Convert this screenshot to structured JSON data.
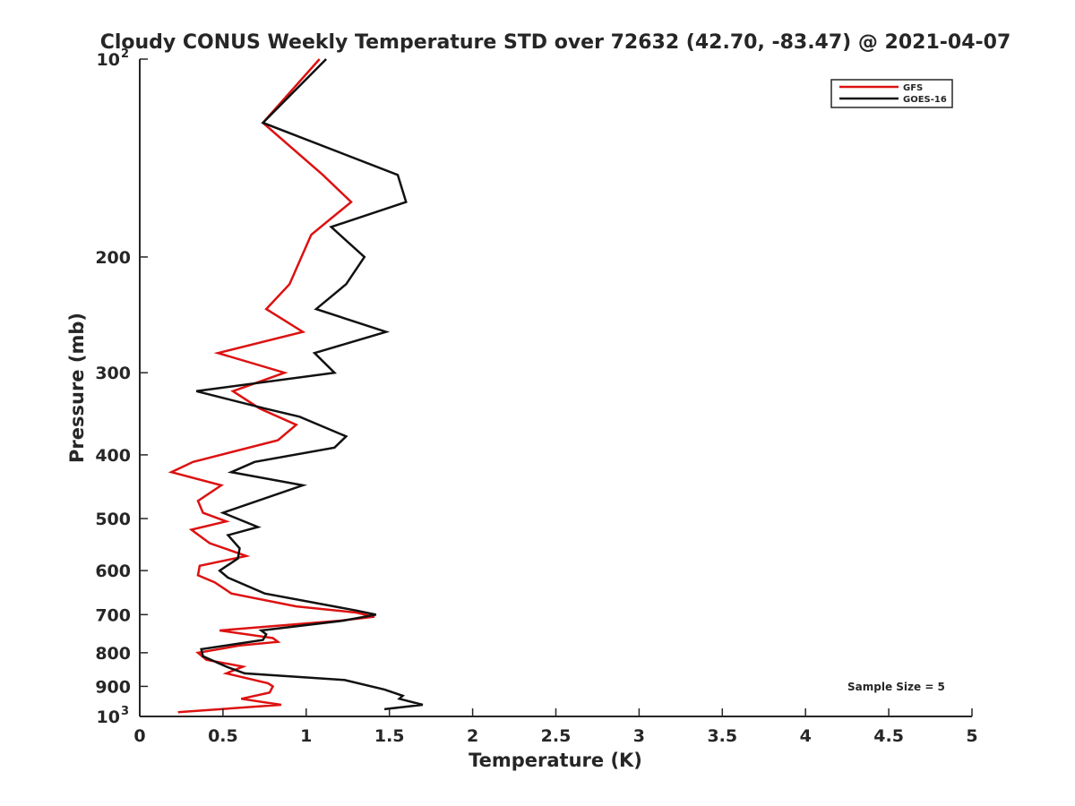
{
  "chart_data": {
    "type": "line",
    "title": "Cloudy CONUS Weekly Temperature STD over 72632 (42.70, -83.47) @ 2021-04-07",
    "xlabel": "Temperature (K)",
    "ylabel": "Pressure (mb)",
    "xlim": [
      0,
      5
    ],
    "ylim": [
      100,
      1000
    ],
    "y_scale": "log",
    "y_reversed": true,
    "x_ticks": [
      "0",
      "0.5",
      "1",
      "1.5",
      "2",
      "2.5",
      "3",
      "3.5",
      "4",
      "4.5",
      "5"
    ],
    "y_ticks": [
      {
        "value": 100,
        "base": "10",
        "exp": "2"
      },
      {
        "value": 200,
        "label": "200"
      },
      {
        "value": 300,
        "label": "300"
      },
      {
        "value": 400,
        "label": "400"
      },
      {
        "value": 500,
        "label": "500"
      },
      {
        "value": 600,
        "label": "600"
      },
      {
        "value": 700,
        "label": "700"
      },
      {
        "value": 800,
        "label": "800"
      },
      {
        "value": 900,
        "label": "900"
      },
      {
        "value": 1000,
        "base": "10",
        "exp": "3"
      }
    ],
    "grid": false,
    "legend_position": "top-right",
    "annotation": "Sample Size = 5",
    "series": [
      {
        "name": "GFS",
        "color": "#dd1111",
        "points": [
          [
            1.08,
            100
          ],
          [
            0.74,
            125
          ],
          [
            1.1,
            150
          ],
          [
            1.27,
            165
          ],
          [
            1.03,
            185
          ],
          [
            0.9,
            220
          ],
          [
            0.76,
            240
          ],
          [
            0.98,
            260
          ],
          [
            0.47,
            280
          ],
          [
            0.87,
            300
          ],
          [
            0.56,
            320
          ],
          [
            0.72,
            340
          ],
          [
            0.94,
            360
          ],
          [
            0.83,
            380
          ],
          [
            0.32,
            410
          ],
          [
            0.19,
            425
          ],
          [
            0.49,
            445
          ],
          [
            0.35,
            470
          ],
          [
            0.38,
            490
          ],
          [
            0.52,
            505
          ],
          [
            0.31,
            520
          ],
          [
            0.42,
            545
          ],
          [
            0.64,
            570
          ],
          [
            0.36,
            590
          ],
          [
            0.35,
            610
          ],
          [
            0.45,
            625
          ],
          [
            0.55,
            650
          ],
          [
            0.94,
            680
          ],
          [
            1.3,
            695
          ],
          [
            1.41,
            705
          ],
          [
            1.2,
            715
          ],
          [
            0.48,
            740
          ],
          [
            0.8,
            760
          ],
          [
            0.83,
            770
          ],
          [
            0.6,
            780
          ],
          [
            0.35,
            800
          ],
          [
            0.4,
            820
          ],
          [
            0.62,
            840
          ],
          [
            0.52,
            860
          ],
          [
            0.77,
            890
          ],
          [
            0.8,
            900
          ],
          [
            0.78,
            920
          ],
          [
            0.61,
            940
          ],
          [
            0.85,
            960
          ],
          [
            0.23,
            985
          ]
        ]
      },
      {
        "name": "GOES-16",
        "color": "#111111",
        "points": [
          [
            1.12,
            100
          ],
          [
            0.74,
            125
          ],
          [
            1.55,
            150
          ],
          [
            1.6,
            165
          ],
          [
            1.15,
            180
          ],
          [
            1.35,
            200
          ],
          [
            1.24,
            220
          ],
          [
            1.06,
            240
          ],
          [
            1.48,
            260
          ],
          [
            1.05,
            280
          ],
          [
            1.17,
            300
          ],
          [
            0.34,
            320
          ],
          [
            0.75,
            340
          ],
          [
            0.96,
            350
          ],
          [
            1.24,
            375
          ],
          [
            1.17,
            390
          ],
          [
            0.69,
            410
          ],
          [
            0.55,
            425
          ],
          [
            0.98,
            445
          ],
          [
            0.5,
            490
          ],
          [
            0.71,
            515
          ],
          [
            0.53,
            530
          ],
          [
            0.6,
            555
          ],
          [
            0.59,
            575
          ],
          [
            0.48,
            600
          ],
          [
            0.53,
            615
          ],
          [
            0.75,
            650
          ],
          [
            1.3,
            690
          ],
          [
            1.42,
            700
          ],
          [
            1.22,
            715
          ],
          [
            0.73,
            740
          ],
          [
            0.76,
            750
          ],
          [
            0.74,
            765
          ],
          [
            0.37,
            790
          ],
          [
            0.38,
            810
          ],
          [
            0.52,
            840
          ],
          [
            0.63,
            860
          ],
          [
            1.23,
            880
          ],
          [
            1.47,
            910
          ],
          [
            1.58,
            930
          ],
          [
            1.56,
            940
          ],
          [
            1.7,
            960
          ],
          [
            1.47,
            975
          ]
        ]
      }
    ]
  }
}
